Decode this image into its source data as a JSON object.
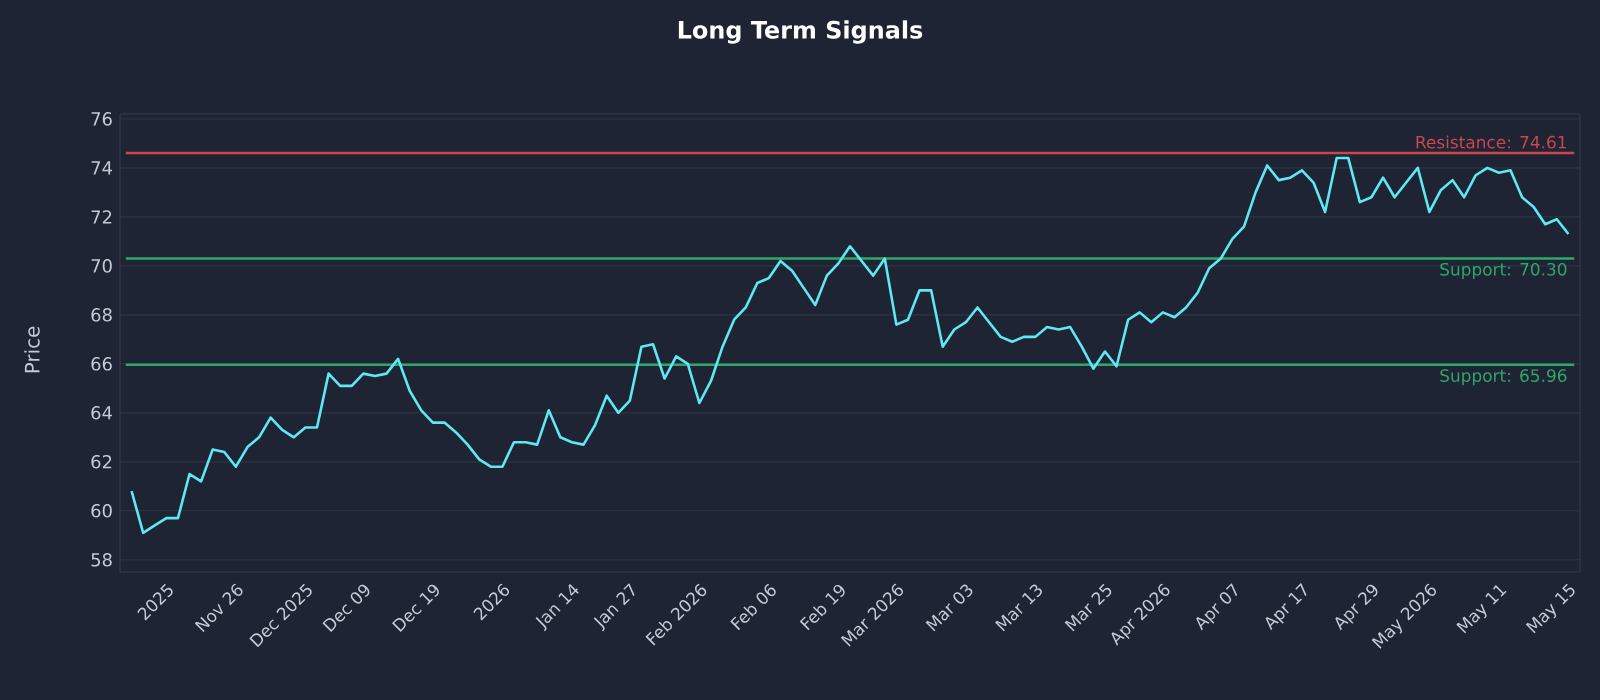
{
  "chart_data": {
    "type": "line",
    "title": "Long Term Signals",
    "ylabel": "Price",
    "categories": [
      null,
      null,
      null,
      "2025",
      null,
      null,
      null,
      null,
      null,
      "Nov 26",
      null,
      null,
      null,
      null,
      null,
      "Dec 2025",
      null,
      null,
      null,
      null,
      "Dec 09",
      null,
      null,
      null,
      null,
      null,
      "Dec 19",
      null,
      null,
      null,
      null,
      null,
      "2026",
      null,
      null,
      null,
      null,
      null,
      "Jan 14",
      null,
      null,
      null,
      null,
      "Jan 27",
      null,
      null,
      null,
      null,
      null,
      "Feb 2026",
      null,
      null,
      null,
      null,
      null,
      "Feb 06",
      null,
      null,
      null,
      null,
      null,
      "Feb 19",
      null,
      null,
      null,
      null,
      "Mar 2026",
      null,
      null,
      null,
      null,
      null,
      "Mar 03",
      null,
      null,
      null,
      null,
      null,
      "Mar 13",
      null,
      null,
      null,
      null,
      null,
      "Mar 25",
      null,
      null,
      null,
      null,
      "Apr 2026",
      null,
      null,
      null,
      null,
      null,
      "Apr 07",
      null,
      null,
      null,
      null,
      null,
      "Apr 17",
      null,
      null,
      null,
      null,
      null,
      "Apr 29",
      null,
      null,
      null,
      null,
      "May 2026",
      null,
      null,
      null,
      null,
      null,
      "May 11",
      null,
      null,
      null,
      null,
      null,
      "May 15"
    ],
    "series": [
      {
        "color": "#5ee8f2",
        "values": [
          60.8,
          59.1,
          59.4,
          59.7,
          59.7,
          61.5,
          61.2,
          62.5,
          62.4,
          61.8,
          62.6,
          63.0,
          63.8,
          63.3,
          63.0,
          63.4,
          63.4,
          65.6,
          65.1,
          65.1,
          65.6,
          65.5,
          65.6,
          66.2,
          64.9,
          64.1,
          63.6,
          63.6,
          63.2,
          62.7,
          62.1,
          61.8,
          61.8,
          62.8,
          62.8,
          62.7,
          64.1,
          63.0,
          62.8,
          62.7,
          63.5,
          64.7,
          64.0,
          64.5,
          66.7,
          66.8,
          65.4,
          66.3,
          66.0,
          64.4,
          65.3,
          66.7,
          67.8,
          68.3,
          69.3,
          69.5,
          70.2,
          69.8,
          69.1,
          68.4,
          69.6,
          70.1,
          70.8,
          70.2,
          69.6,
          70.3,
          67.6,
          67.8,
          69.0,
          69.0,
          66.7,
          67.4,
          67.7,
          68.3,
          67.7,
          67.1,
          66.9,
          67.1,
          67.1,
          67.5,
          67.4,
          67.5,
          66.7,
          65.8,
          66.5,
          65.9,
          67.8,
          68.1,
          67.7,
          68.1,
          67.9,
          68.3,
          68.9,
          69.9,
          70.3,
          71.1,
          71.6,
          73.0,
          74.1,
          73.5,
          73.6,
          73.9,
          73.4,
          72.2,
          74.4,
          74.4,
          72.6,
          72.8,
          73.6,
          72.8,
          73.4,
          74.0,
          72.2,
          73.1,
          73.5,
          72.8,
          73.7,
          74.0,
          73.8,
          73.9,
          72.8,
          72.4,
          71.7,
          71.9,
          71.3
        ]
      }
    ],
    "ylim": [
      57.5,
      76.2
    ],
    "yticks": [
      58,
      60,
      62,
      64,
      66,
      68,
      70,
      72,
      74,
      76
    ],
    "grid": "y",
    "ref_lines": [
      {
        "axis": "y",
        "value": 74.61,
        "label": "Resistance: 74.61",
        "color": "#c9474d"
      },
      {
        "axis": "y",
        "value": 70.3,
        "label": "Support: 70.30",
        "color": "#2ea86a"
      },
      {
        "axis": "y",
        "value": 65.96,
        "label": "Support: 65.96",
        "color": "#2ea86a"
      }
    ]
  }
}
